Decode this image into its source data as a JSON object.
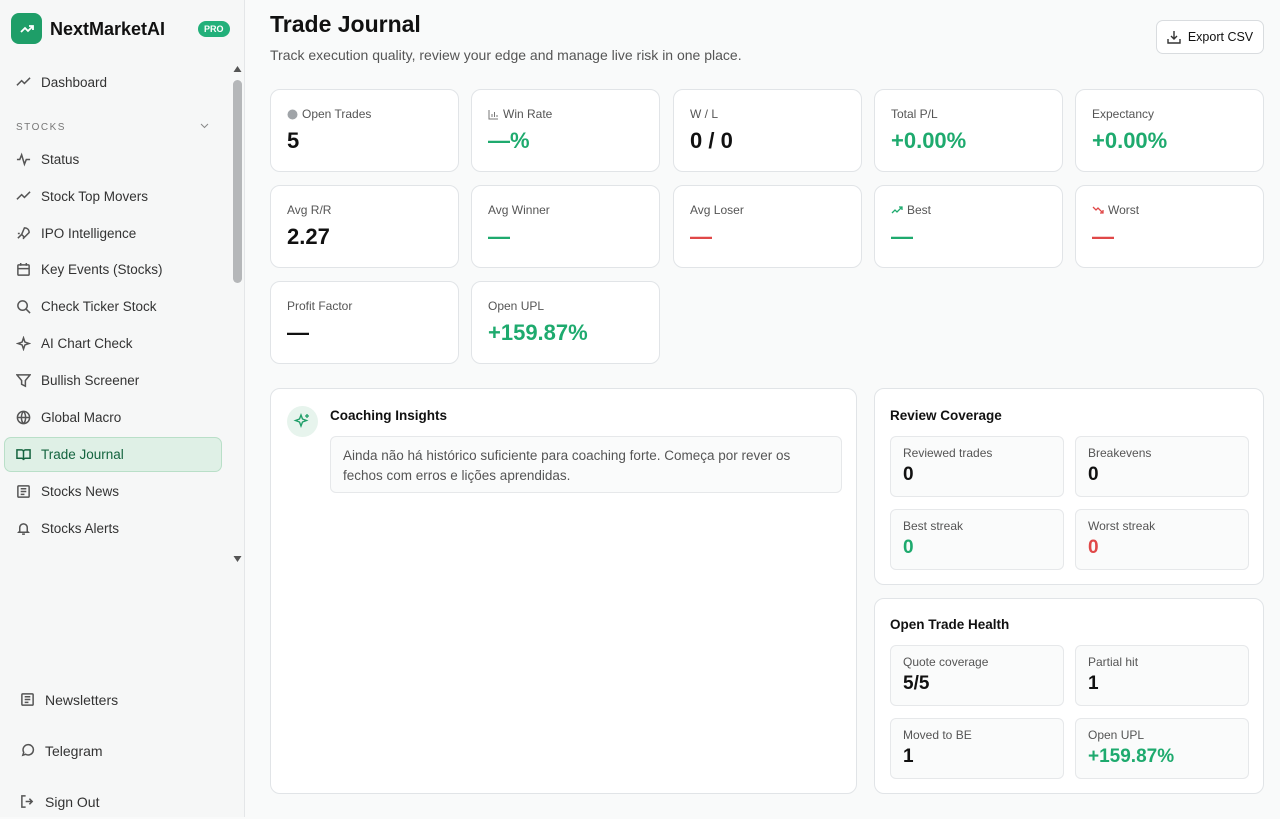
{
  "sidebar": {
    "brand": "NextMarketAI",
    "badge": "PRO",
    "dashboard": "Dashboard",
    "section": "STOCKS",
    "nav": [
      "Status",
      "Stock Top Movers",
      "IPO Intelligence",
      "Key Events (Stocks)",
      "Check Ticker Stock",
      "AI Chart Check",
      "Bullish Screener",
      "Global Macro",
      "Trade Journal",
      "Stocks News",
      "Stocks Alerts"
    ],
    "bottom": [
      "Newsletters",
      "Telegram",
      "Sign Out"
    ]
  },
  "header": {
    "title": "Trade Journal",
    "subtitle": "Track execution quality, review your edge and manage live risk in one place.",
    "export": "Export CSV"
  },
  "stats": [
    {
      "label": "Open Trades",
      "value": "5"
    },
    {
      "label": "Win Rate",
      "value": "—%"
    },
    {
      "label": "W / L",
      "value": "0 / 0"
    },
    {
      "label": "Total P/L",
      "value": "+0.00%"
    },
    {
      "label": "Expectancy",
      "value": "+0.00%"
    },
    {
      "label": "Avg R/R",
      "value": "2.27"
    },
    {
      "label": "Avg Winner",
      "value": "—"
    },
    {
      "label": "Avg Loser",
      "value": "—"
    },
    {
      "label": "Best",
      "value": "—"
    },
    {
      "label": "Worst",
      "value": "—"
    },
    {
      "label": "Profit Factor",
      "value": "—"
    },
    {
      "label": "Open UPL",
      "value": "+159.87%"
    }
  ],
  "coaching": {
    "title": "Coaching Insights",
    "message": "Ainda não há histórico suficiente para coaching forte. Começa por rever os fechos com erros e lições aprendidas."
  },
  "review_coverage": {
    "title": "Review Coverage",
    "items": [
      {
        "label": "Reviewed trades",
        "value": "0"
      },
      {
        "label": "Breakevens",
        "value": "0"
      },
      {
        "label": "Best streak",
        "value": "0"
      },
      {
        "label": "Worst streak",
        "value": "0"
      }
    ]
  },
  "open_trade_health": {
    "title": "Open Trade Health",
    "items": [
      {
        "label": "Quote coverage",
        "value": "5/5"
      },
      {
        "label": "Partial hit",
        "value": "1"
      },
      {
        "label": "Moved to BE",
        "value": "1"
      },
      {
        "label": "Open UPL",
        "value": "+159.87%"
      }
    ]
  }
}
